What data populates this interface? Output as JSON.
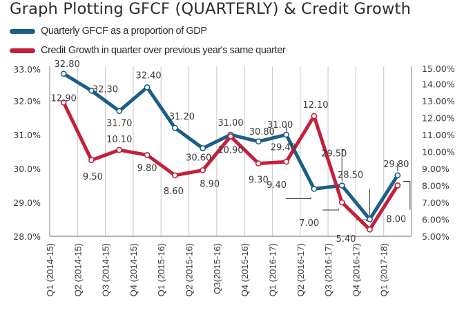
{
  "chart_data": {
    "type": "line",
    "title": "Graph Plotting GFCF (QUARTERLY) & Credit Growth",
    "xlabel": "",
    "categories": [
      "Q1 (2014-15)",
      "Q2 (2014-15)",
      "Q3 (2014-15)",
      "Q4 (2014-15)",
      "Q1 (2015-16)",
      "Q2 (2015-16)",
      "Q3(2015-16)",
      "Q4 (2015-16)",
      "Q1 (2016-17)",
      "Q2 (2016-17)",
      "Q3 (2016-17)",
      "Q4 (2016-17)",
      "Q1 (2017-18)"
    ],
    "series": [
      {
        "name": "Quarterly GFCF as a proportion of GDP",
        "axis": "left",
        "color": "#1b5e86",
        "values": [
          32.8,
          32.3,
          31.7,
          32.4,
          31.2,
          30.6,
          31.0,
          30.8,
          31.0,
          29.4,
          29.5,
          28.5,
          29.8
        ],
        "labels": [
          "32.80",
          "32.30",
          "31.70",
          "32.40",
          "31.20",
          "30.60",
          "31.00",
          "30.80",
          "31.00",
          "29.40",
          "29.50",
          "28.50",
          "29.80"
        ]
      },
      {
        "name": "Credit Growth in quarter over previous year's same quarter",
        "axis": "right",
        "color": "#c41f3b",
        "values": [
          12.9,
          9.5,
          10.1,
          9.8,
          8.6,
          8.9,
          10.9,
          9.3,
          9.4,
          12.1,
          7.0,
          5.4,
          8.0
        ],
        "labels": [
          "12.90",
          "9.50",
          "10.10",
          "9.80",
          "8.60",
          "8.90",
          "10.90",
          "9.30",
          "9.40",
          "12.10",
          "7.00",
          "5.40",
          "8.00"
        ]
      }
    ],
    "left_axis": {
      "ylim": [
        28.0,
        33.0
      ],
      "ticks": [
        33.0,
        32.0,
        31.0,
        30.0,
        29.0,
        28.0
      ],
      "tick_labels": [
        "33.0%",
        "32.0%",
        "31.0%",
        "30.0%",
        "29.0%",
        "28.0%"
      ]
    },
    "right_axis": {
      "ylim": [
        5.0,
        15.0
      ],
      "ticks": [
        15,
        14,
        13,
        12,
        11,
        10,
        9,
        8,
        7,
        6,
        5
      ],
      "tick_labels": [
        "15.00%",
        "14.00%",
        "13.00%",
        "12.00%",
        "11.00%",
        "10.00%",
        "9.00%",
        "8.00%",
        "7.00%",
        "6.00%",
        "5.00%"
      ]
    },
    "grid": "vertical",
    "legend_position": "top-left"
  },
  "legend": [
    {
      "label": "Quarterly GFCF as a proportion of GDP",
      "color": "#1b5e86"
    },
    {
      "label": "Credit Growth in quarter over previous year's same quarter",
      "color": "#c41f3b"
    }
  ]
}
